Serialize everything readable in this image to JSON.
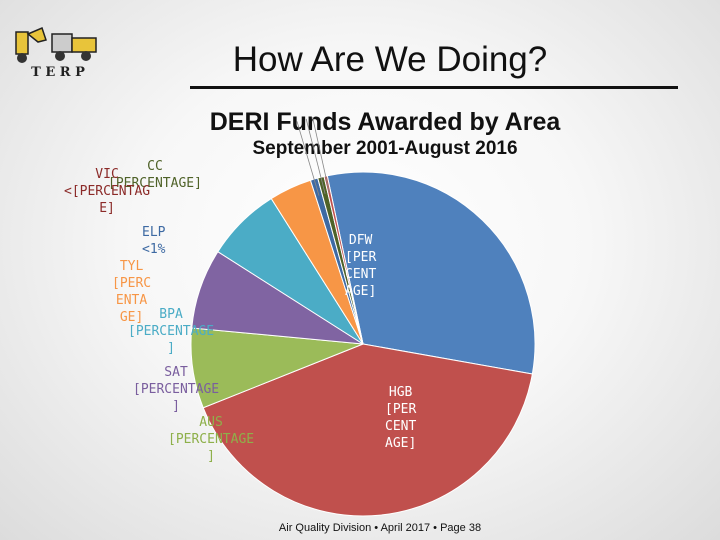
{
  "logo": {
    "letters": "T E R P"
  },
  "title": "How Are We Doing?",
  "chart_data": {
    "type": "pie",
    "title": "DERI Funds Awarded by Area",
    "subtitle": "September 2001-August 2016",
    "slices": [
      {
        "name": "DFW",
        "label": "DFW [PERCENTAGE]",
        "value": 31.0,
        "color": "#4f81bd",
        "label_color": "#ffffff"
      },
      {
        "name": "HGB",
        "label": "HGB [PERCENTAGE]",
        "value": 41.0,
        "color": "#c0504d",
        "label_color": "#ffffff"
      },
      {
        "name": "AUS",
        "label": "AUS [PERCENTAGE]",
        "value": 7.5,
        "color": "#9bbb59",
        "label_color": "#8eb04a"
      },
      {
        "name": "SAT",
        "label": "SAT [PERCENTAGE]",
        "value": 7.5,
        "color": "#8064a2",
        "label_color": "#7a5e9e"
      },
      {
        "name": "BPA",
        "label": "BPA [PERCENTAGE]",
        "value": 7.0,
        "color": "#4bacc6",
        "label_color": "#4bacc6"
      },
      {
        "name": "TYL",
        "label": "TYL [PERCENTAGE]",
        "value": 4.0,
        "color": "#f79646",
        "label_color": "#f79646"
      },
      {
        "name": "ELP",
        "label": "ELP <1%",
        "value": 0.7,
        "color": "#3e6aa3",
        "label_color": "#3e6aa3"
      },
      {
        "name": "CC",
        "label": "CC [PERCENTAGE]",
        "value": 0.6,
        "color": "#4f6228",
        "label_color": "#4f6228"
      },
      {
        "name": "VIC",
        "label": "VIC <[PERCENTAGE]",
        "value": 0.3,
        "color": "#c0504d",
        "label_color": "#8b2a28"
      }
    ]
  },
  "labels": {
    "dfw": "DFW\n[PER\nCENT\nAGE]",
    "hgb": "HGB\n[PER\nCENT\nAGE]",
    "aus": "AUS\n[PERCENTAGE\n]",
    "sat": "SAT\n[PERCENTAGE\n]",
    "bpa": "BPA\n[PERCENTAGE\n]",
    "tyl": "TYL\n[PERC\nENTA\nGE]",
    "elp": "ELP\n<1%",
    "cc": "CC\n[PERCENTAGE]",
    "vic": "VIC\n<[PERCENTAG\nE]"
  },
  "footer": "Air Quality Division • April 2017 • Page 38"
}
